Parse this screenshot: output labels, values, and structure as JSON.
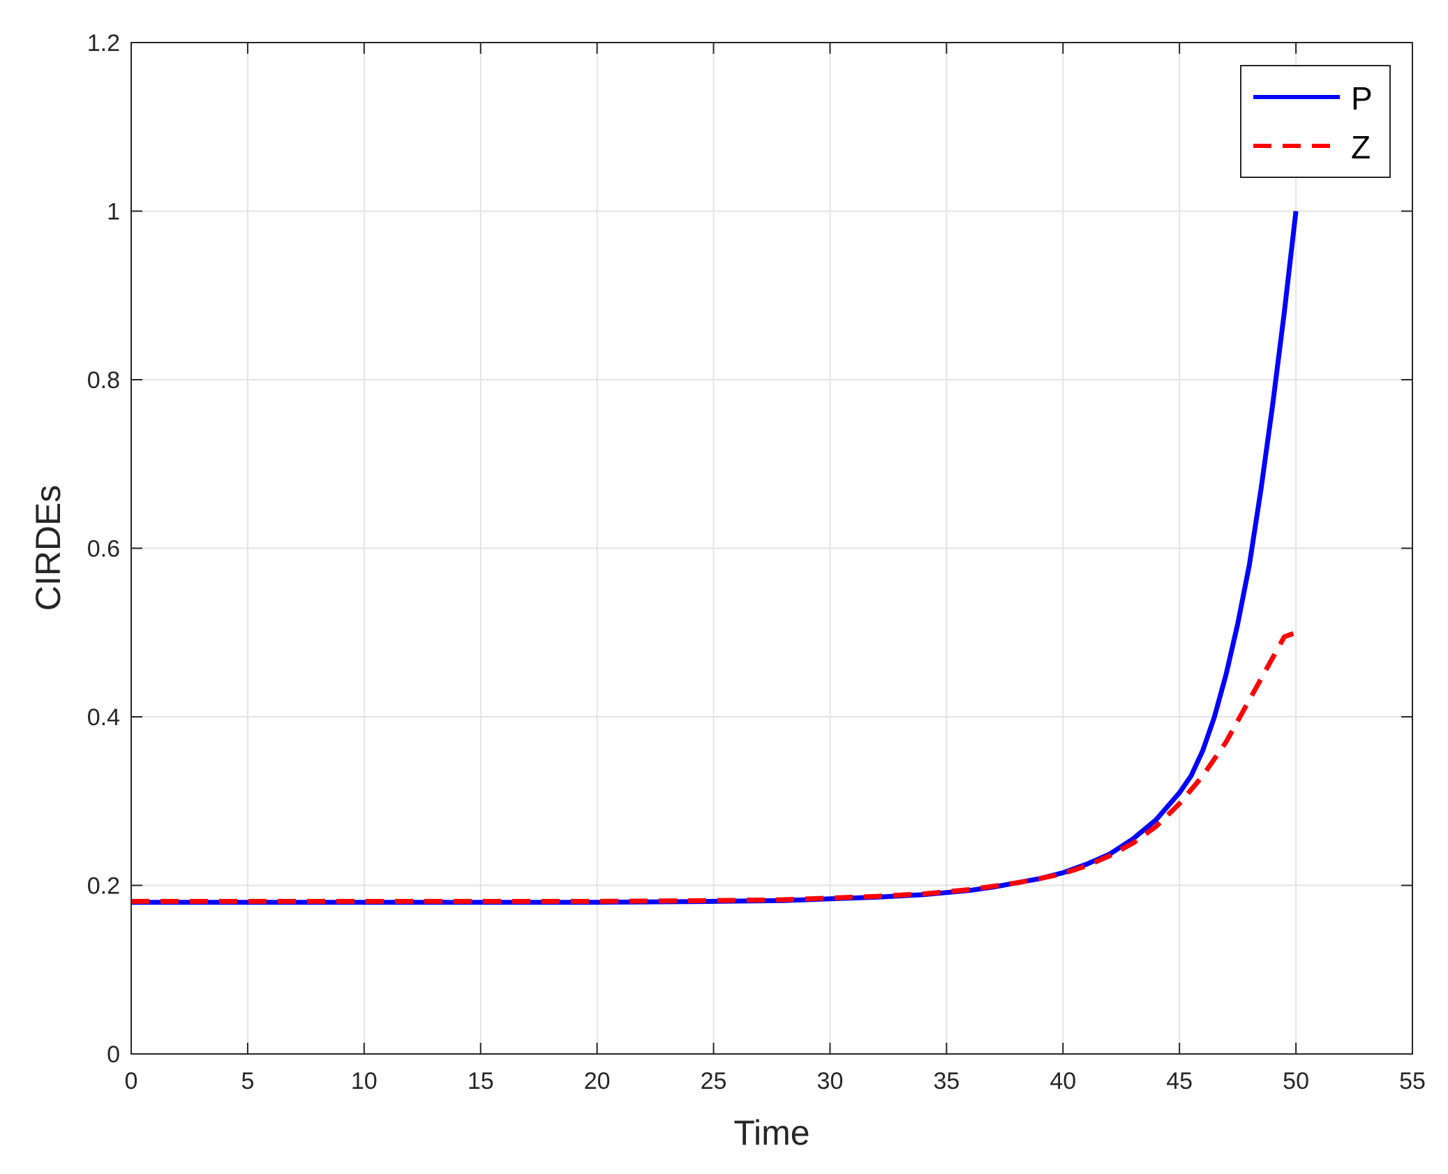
{
  "chart_data": {
    "type": "line",
    "title": "",
    "xlabel": "Time",
    "ylabel": "CIRDEs",
    "xlim": [
      0,
      55
    ],
    "ylim": [
      0,
      1.2
    ],
    "xticks": [
      0,
      5,
      10,
      15,
      20,
      25,
      30,
      35,
      40,
      45,
      50,
      55
    ],
    "yticks": [
      0,
      0.2,
      0.4,
      0.6,
      0.8,
      1,
      1.2
    ],
    "xtick_labels": [
      "0",
      "5",
      "10",
      "15",
      "20",
      "25",
      "30",
      "35",
      "40",
      "45",
      "50",
      "55"
    ],
    "ytick_labels": [
      "0",
      "0.2",
      "0.4",
      "0.6",
      "0.8",
      "1",
      "1.2"
    ],
    "grid": true,
    "legend_position": "top-right",
    "series": [
      {
        "name": "P",
        "color": "#0000ff",
        "style": "solid",
        "x": [
          0,
          5,
          10,
          15,
          20,
          25,
          28,
          30,
          32,
          34,
          36,
          37,
          38,
          39,
          40,
          41,
          42,
          43,
          44,
          45,
          45.5,
          46,
          46.5,
          47,
          47.5,
          48,
          48.5,
          49,
          49.5,
          50
        ],
        "y": [
          0.18,
          0.18,
          0.18,
          0.18,
          0.18,
          0.181,
          0.182,
          0.184,
          0.186,
          0.189,
          0.194,
          0.198,
          0.203,
          0.208,
          0.215,
          0.225,
          0.237,
          0.255,
          0.278,
          0.31,
          0.33,
          0.36,
          0.4,
          0.45,
          0.51,
          0.58,
          0.67,
          0.77,
          0.88,
          1.0
        ]
      },
      {
        "name": "Z",
        "color": "#ff0000",
        "style": "dashed",
        "x": [
          0,
          5,
          10,
          15,
          20,
          25,
          28,
          30,
          32,
          34,
          36,
          37,
          38,
          39,
          40,
          41,
          42,
          43,
          44,
          45,
          46,
          47,
          48,
          49,
          49.5,
          50
        ],
        "y": [
          0.181,
          0.181,
          0.181,
          0.181,
          0.181,
          0.182,
          0.183,
          0.185,
          0.187,
          0.19,
          0.195,
          0.199,
          0.203,
          0.208,
          0.214,
          0.223,
          0.235,
          0.25,
          0.27,
          0.297,
          0.33,
          0.37,
          0.42,
          0.47,
          0.495,
          0.5
        ]
      }
    ]
  }
}
